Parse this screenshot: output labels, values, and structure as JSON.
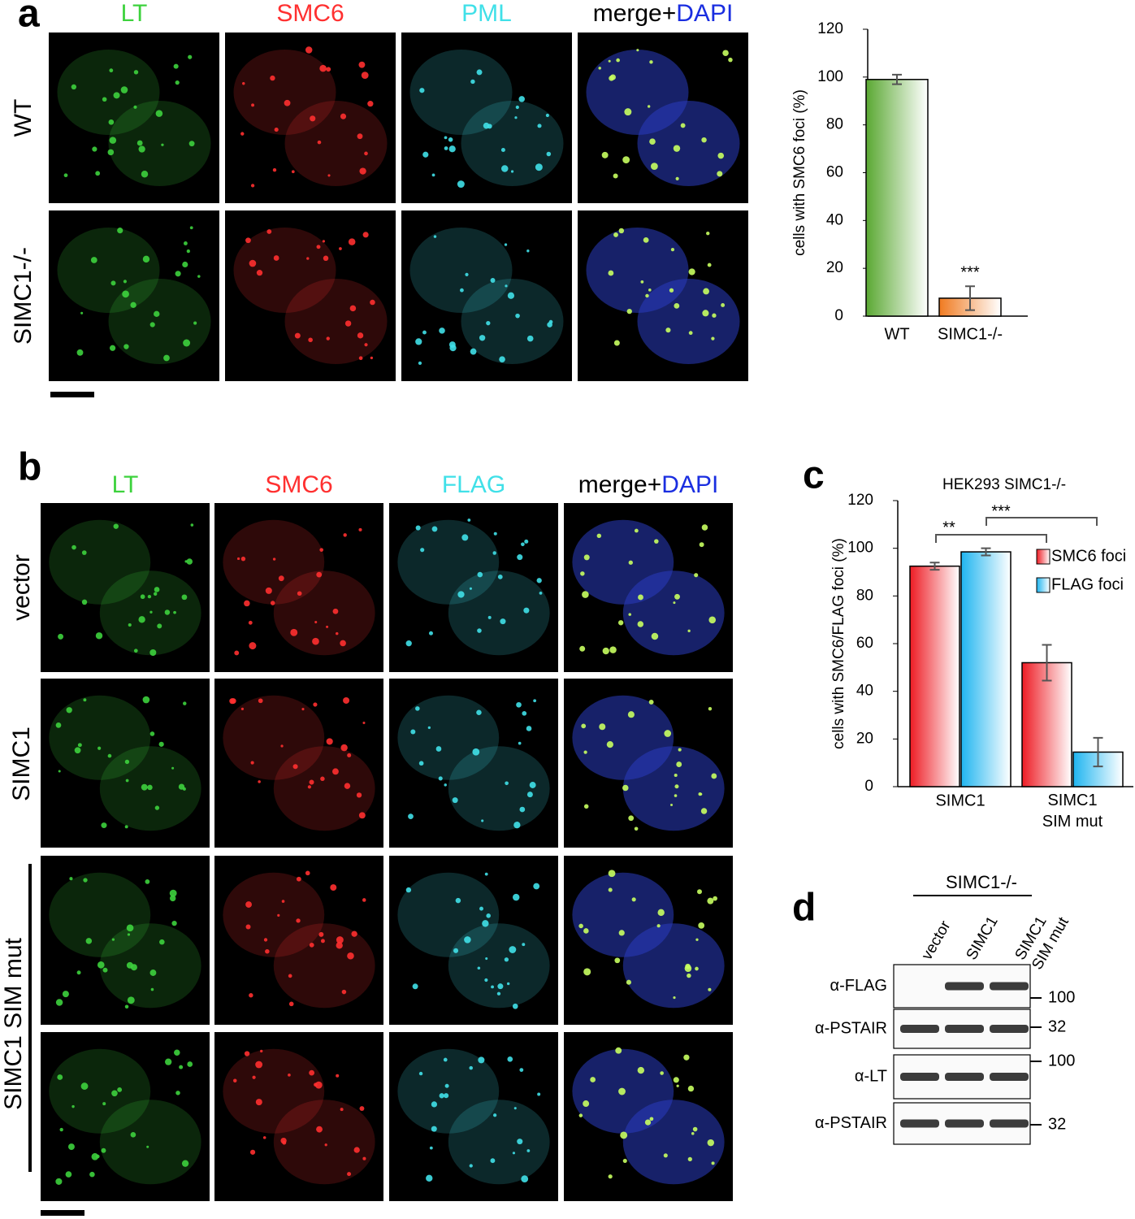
{
  "panels": {
    "a": "a",
    "b": "b",
    "c": "c",
    "d": "d"
  },
  "panel_a": {
    "columns": [
      "LT",
      "SMC6",
      "PML"
    ],
    "merge": "merge+",
    "dapi": "DAPI",
    "rows": [
      "WT",
      "SIMC1-/-"
    ]
  },
  "panel_b": {
    "columns": [
      "LT",
      "SMC6",
      "FLAG"
    ],
    "merge": "merge+",
    "dapi": "DAPI",
    "rows": [
      "vector",
      "SIMC1",
      "SIMC1 SIM mut"
    ]
  },
  "chart_data": [
    {
      "type": "bar",
      "ylabel": "cells with SMC6 foci (%)",
      "categories": [
        "WT",
        "SIMC1-/-"
      ],
      "values": [
        99,
        7.5
      ],
      "errors": [
        2,
        5
      ],
      "colors": [
        "#5aa832",
        "#f07a20"
      ],
      "ylim": [
        0,
        120
      ],
      "yticks": [
        0,
        20,
        40,
        60,
        80,
        100,
        120
      ],
      "annotations": [
        "***"
      ]
    },
    {
      "type": "grouped_bar",
      "title": "HEK293 SIMC1-/-",
      "ylabel": "cells with SMC6/FLAG foci (%)",
      "categories": [
        "SIMC1",
        "SIMC1 SIM mut"
      ],
      "series": [
        {
          "name": "SMC6 foci",
          "color": "#ee1c24",
          "values": [
            92.5,
            52
          ],
          "errors": [
            1.5,
            7.5
          ]
        },
        {
          "name": "FLAG foci",
          "color": "#1fb5f0",
          "values": [
            98.5,
            14.5
          ],
          "errors": [
            1.5,
            6
          ]
        }
      ],
      "ylim": [
        0,
        120
      ],
      "yticks": [
        0,
        20,
        40,
        60,
        80,
        100,
        120
      ],
      "annotations": [
        "**",
        "***"
      ]
    }
  ],
  "blot": {
    "header": "SIMC1-/-",
    "lanes": [
      "vector",
      "SIMC1",
      "SIMC1 SIM mut"
    ],
    "rows": [
      "α-FLAG",
      "α-PSTAIR",
      "α-LT",
      "α-PSTAIR"
    ],
    "markers": [
      "100",
      "32",
      "100",
      "32"
    ]
  }
}
